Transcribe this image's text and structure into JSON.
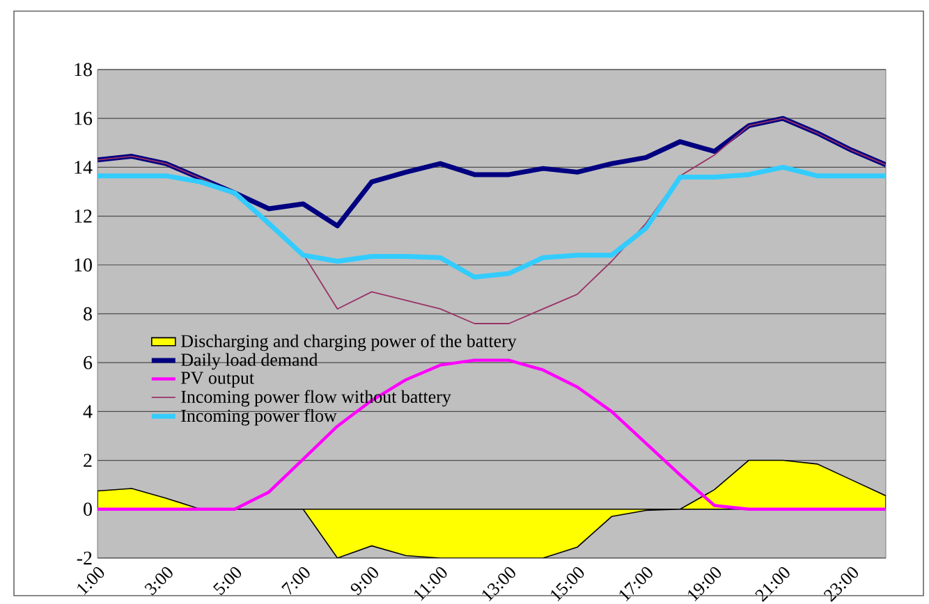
{
  "chart_data": {
    "type": "line",
    "categories": [
      "1:00",
      null,
      "3:00",
      null,
      "5:00",
      null,
      "7:00",
      null,
      "9:00",
      null,
      "11:00",
      null,
      "13:00",
      null,
      "15:00",
      null,
      "17:00",
      null,
      "19:00",
      null,
      "21:00",
      null,
      "23:00",
      null
    ],
    "ylim": [
      -2,
      18
    ],
    "yticks": [
      -2,
      0,
      2,
      4,
      6,
      8,
      10,
      12,
      14,
      16,
      18
    ],
    "grid": "y",
    "legend": "left",
    "series": [
      {
        "name": "Discharging and charging power of the battery",
        "type": "area",
        "color": "#ffff00",
        "values": [
          0.75,
          0.85,
          0.45,
          0,
          0,
          0,
          0,
          -2,
          -1.5,
          -1.9,
          -2,
          -2,
          -2,
          -2,
          -1.55,
          -0.3,
          -0.05,
          0,
          0.8,
          2,
          2,
          1.85,
          1.2,
          0.55
        ]
      },
      {
        "name": "Daily load demand",
        "color": "#000080",
        "values": [
          14.3,
          14.45,
          14.15,
          13.55,
          12.95,
          12.3,
          12.5,
          11.6,
          13.4,
          13.8,
          14.15,
          13.7,
          13.7,
          13.95,
          13.8,
          14.15,
          14.4,
          15.05,
          14.65,
          15.7,
          16,
          15.4,
          14.7,
          14.1
        ]
      },
      {
        "name": "PV output",
        "color": "#ff00ff",
        "values": [
          0,
          0,
          0,
          0,
          0,
          0.7,
          2.05,
          3.4,
          4.45,
          5.3,
          5.9,
          6.1,
          6.1,
          5.7,
          5,
          4,
          2.7,
          1.4,
          0.15,
          0,
          0,
          0,
          0,
          0
        ]
      },
      {
        "name": "Incoming power flow without battery",
        "color": "#993366",
        "values": [
          14.3,
          14.45,
          14.15,
          13.55,
          12.95,
          11.6,
          10.45,
          8.2,
          8.9,
          8.55,
          8.2,
          7.6,
          7.6,
          8.2,
          8.8,
          10.15,
          11.7,
          13.65,
          14.5,
          15.7,
          16,
          15.4,
          14.7,
          14.1
        ]
      },
      {
        "name": "Incoming power flow",
        "color": "#33ccff",
        "values": [
          13.65,
          13.65,
          13.65,
          13.4,
          12.95,
          11.7,
          10.4,
          10.15,
          10.35,
          10.35,
          10.3,
          9.5,
          9.65,
          10.3,
          10.4,
          10.4,
          11.5,
          13.6,
          13.6,
          13.7,
          14,
          13.65,
          13.65,
          13.65
        ]
      }
    ]
  }
}
